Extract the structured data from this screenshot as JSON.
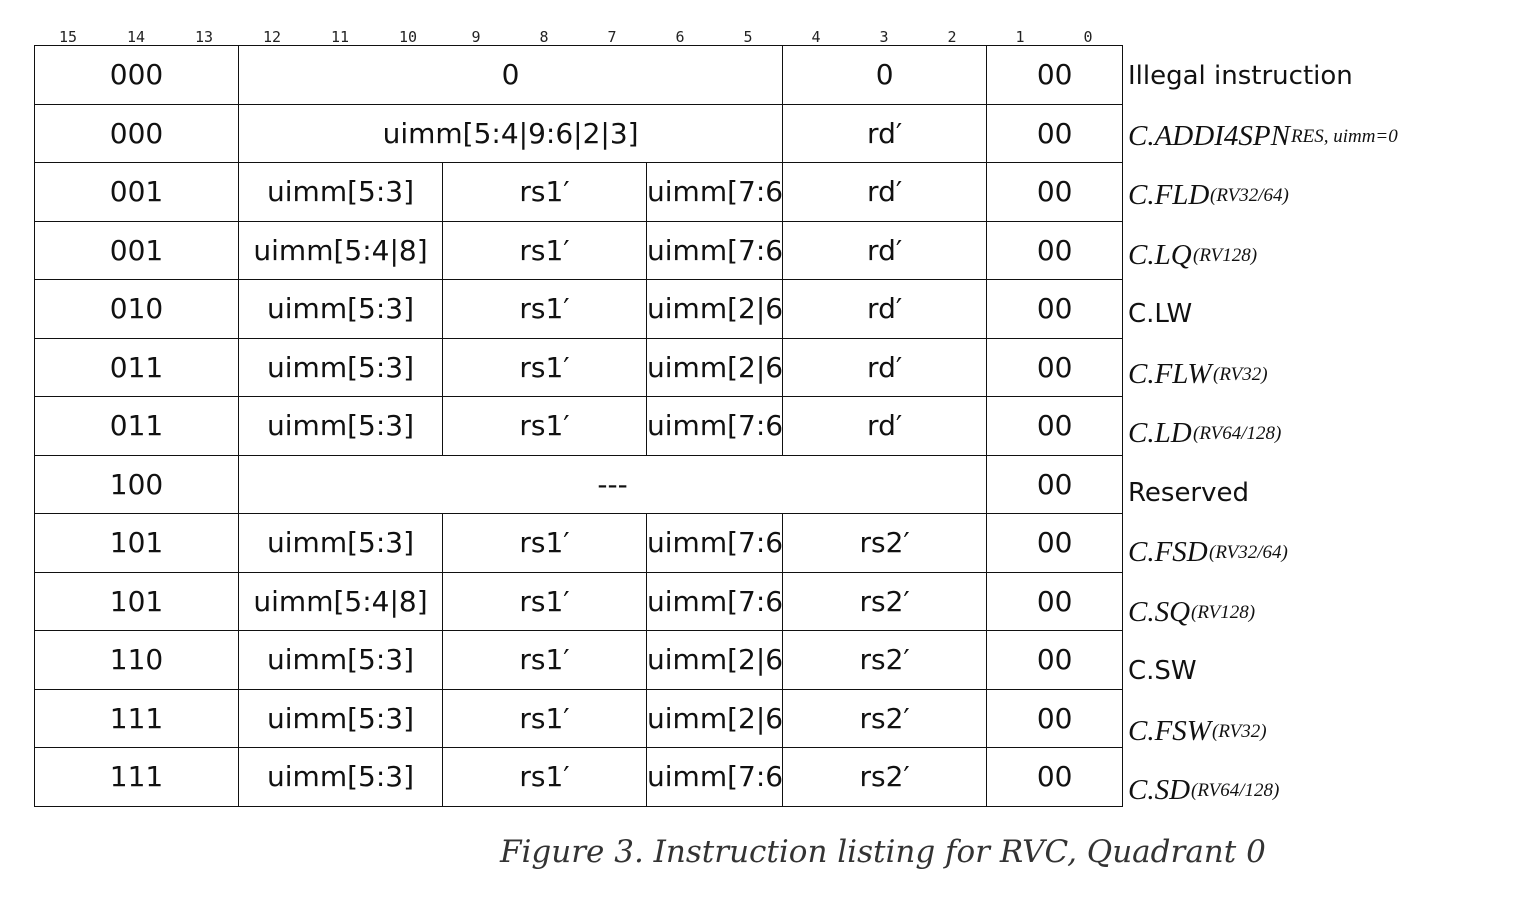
{
  "bit_numbers": [
    "15",
    "14",
    "13",
    "12",
    "11",
    "10",
    "9",
    "8",
    "7",
    "6",
    "5",
    "4",
    "3",
    "2",
    "1",
    "0"
  ],
  "rows": [
    {
      "cells": [
        "000",
        "0",
        "0",
        "00"
      ],
      "spans": [
        3,
        8,
        3,
        2
      ],
      "name": "Illegal instruction",
      "sub": "",
      "style": "plain"
    },
    {
      "cells": [
        "000",
        "uimm[5:4|9:6|2|3]",
        "rd′",
        "00"
      ],
      "spans": [
        3,
        8,
        3,
        2
      ],
      "name": "C.ADDI4SPN",
      "sub": "RES, uimm=0",
      "style": "it"
    },
    {
      "cells": [
        "001",
        "uimm[5:3]",
        "rs1′",
        "uimm[7:6]",
        "rd′",
        "00"
      ],
      "spans": [
        3,
        3,
        3,
        2,
        3,
        2
      ],
      "name": "C.FLD",
      "sub": "(RV32/64)",
      "style": "it"
    },
    {
      "cells": [
        "001",
        "uimm[5:4|8]",
        "rs1′",
        "uimm[7:6]",
        "rd′",
        "00"
      ],
      "spans": [
        3,
        3,
        3,
        2,
        3,
        2
      ],
      "name": "C.LQ",
      "sub": "(RV128)",
      "style": "it"
    },
    {
      "cells": [
        "010",
        "uimm[5:3]",
        "rs1′",
        "uimm[2|6]",
        "rd′",
        "00"
      ],
      "spans": [
        3,
        3,
        3,
        2,
        3,
        2
      ],
      "name": "C.LW",
      "sub": "",
      "style": "plain"
    },
    {
      "cells": [
        "011",
        "uimm[5:3]",
        "rs1′",
        "uimm[2|6]",
        "rd′",
        "00"
      ],
      "spans": [
        3,
        3,
        3,
        2,
        3,
        2
      ],
      "name": "C.FLW",
      "sub": "(RV32)",
      "style": "it"
    },
    {
      "cells": [
        "011",
        "uimm[5:3]",
        "rs1′",
        "uimm[7:6]",
        "rd′",
        "00"
      ],
      "spans": [
        3,
        3,
        3,
        2,
        3,
        2
      ],
      "name": "C.LD",
      "sub": "(RV64/128)",
      "style": "it"
    },
    {
      "cells": [
        "100",
        "---",
        "00"
      ],
      "spans": [
        3,
        11,
        2
      ],
      "name": "Reserved",
      "sub": "",
      "style": "plain"
    },
    {
      "cells": [
        "101",
        "uimm[5:3]",
        "rs1′",
        "uimm[7:6]",
        "rs2′",
        "00"
      ],
      "spans": [
        3,
        3,
        3,
        2,
        3,
        2
      ],
      "name": "C.FSD",
      "sub": "(RV32/64)",
      "style": "it"
    },
    {
      "cells": [
        "101",
        "uimm[5:4|8]",
        "rs1′",
        "uimm[7:6]",
        "rs2′",
        "00"
      ],
      "spans": [
        3,
        3,
        3,
        2,
        3,
        2
      ],
      "name": "C.SQ",
      "sub": "(RV128)",
      "style": "it"
    },
    {
      "cells": [
        "110",
        "uimm[5:3]",
        "rs1′",
        "uimm[2|6]",
        "rs2′",
        "00"
      ],
      "spans": [
        3,
        3,
        3,
        2,
        3,
        2
      ],
      "name": "C.SW",
      "sub": "",
      "style": "plain"
    },
    {
      "cells": [
        "111",
        "uimm[5:3]",
        "rs1′",
        "uimm[2|6]",
        "rs2′",
        "00"
      ],
      "spans": [
        3,
        3,
        3,
        2,
        3,
        2
      ],
      "name": "C.FSW",
      "sub": "(RV32)",
      "style": "it"
    },
    {
      "cells": [
        "111",
        "uimm[5:3]",
        "rs1′",
        "uimm[7:6]",
        "rs2′",
        "00"
      ],
      "spans": [
        3,
        3,
        3,
        2,
        3,
        2
      ],
      "name": "C.SD",
      "sub": "(RV64/128)",
      "style": "it"
    }
  ],
  "caption": "Figure 3. Instruction listing for RVC, Quadrant 0"
}
